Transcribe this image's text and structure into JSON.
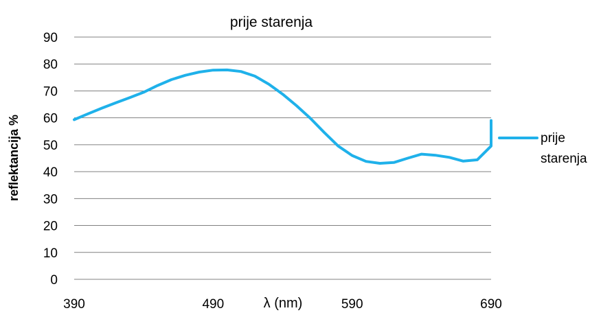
{
  "chart_data": {
    "type": "line",
    "title": "prije starenja",
    "xlabel": "λ (nm)",
    "ylabel": "reflektancija %",
    "xlim": [
      390,
      690
    ],
    "ylim": [
      0,
      90
    ],
    "x_ticks": [
      "390",
      "490",
      "590",
      "690"
    ],
    "y_ticks": [
      "0",
      "10",
      "20",
      "30",
      "40",
      "50",
      "60",
      "70",
      "80",
      "90"
    ],
    "grid": "horizontal",
    "legend_position": "right",
    "series": [
      {
        "name": "prije starenja",
        "color": "#1FB1EA",
        "x": [
          390,
          400,
          410,
          420,
          430,
          440,
          450,
          460,
          470,
          480,
          490,
          500,
          510,
          520,
          530,
          540,
          550,
          560,
          570,
          580,
          590,
          600,
          610,
          620,
          630,
          640,
          650,
          660,
          670,
          680,
          690,
          700
        ],
        "y": [
          59.3,
          61.5,
          63.6,
          65.6,
          67.5,
          69.5,
          72.0,
          74.2,
          75.8,
          77.0,
          77.7,
          77.8,
          77.2,
          75.5,
          72.5,
          68.8,
          64.5,
          59.8,
          54.5,
          49.5,
          46.0,
          43.8,
          43.1,
          43.4,
          45.0,
          46.5,
          46.1,
          45.3,
          43.9,
          44.4,
          49.5,
          59.0
        ]
      }
    ]
  }
}
